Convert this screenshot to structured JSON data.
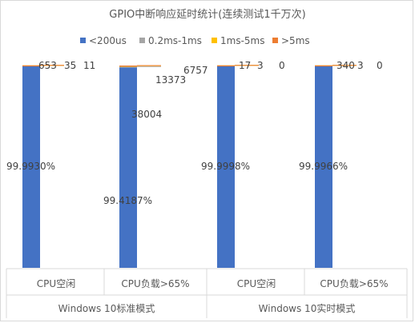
{
  "chart_data": {
    "type": "bar",
    "title": "GPIO中断响应延时统计(连续测试1千万次)",
    "legend": [
      {
        "name": "<200us",
        "color": "#4472C4"
      },
      {
        "name": "0.2ms-1ms",
        "color": "#A5A5A5"
      },
      {
        "name": "1ms-5ms",
        "color": "#FFC000"
      },
      {
        "name": ">5ms",
        "color": "#ED7D31"
      }
    ],
    "legend_position": "top",
    "groups": [
      {
        "label": "Windows 10标准模式",
        "categories": [
          "CPU空闲",
          "CPU负载>65%"
        ]
      },
      {
        "label": "Windows 10实时模式",
        "categories": [
          "CPU空闲",
          "CPU负载>65%"
        ]
      }
    ],
    "categories": [
      "CPU空闲",
      "CPU负载>65%",
      "CPU空闲",
      "CPU负载>65%"
    ],
    "series": [
      {
        "name": "<200us",
        "percent_labels": [
          "99.9930%",
          "99.4187%",
          "99.9998%",
          "99.9966%"
        ]
      },
      {
        "name": "0.2ms-1ms",
        "values": [
          653,
          38004,
          17,
          340
        ]
      },
      {
        "name": "1ms-5ms",
        "values": [
          35,
          13373,
          3,
          3
        ]
      },
      {
        "name": ">5ms",
        "values": [
          11,
          6757,
          0,
          0
        ]
      }
    ],
    "grid": false
  }
}
